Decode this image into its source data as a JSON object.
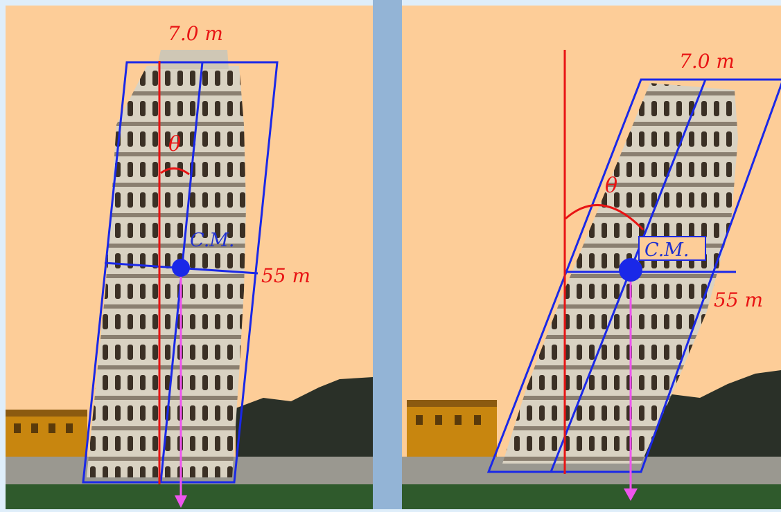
{
  "colors": {
    "background": "#dfeefa",
    "divider": "#93b4d6",
    "sky": "#fdcd98",
    "grass": "#2f5a2c",
    "outline": "#1a28e8",
    "vertical_line": "#e81414",
    "gravity_arrow": "#ee55ee",
    "label_red": "#e81414",
    "label_blue": "#2030d0",
    "tower": "#d9d2c2",
    "building": "#c8860f"
  },
  "left_panel": {
    "width_label": "7.0 m",
    "height_label": "55 m",
    "angle_label": "θ",
    "cm_label": "C.M."
  },
  "right_panel": {
    "width_label": "7.0 m",
    "height_label": "55 m",
    "angle_label": "θ",
    "cm_label": "C.M."
  }
}
